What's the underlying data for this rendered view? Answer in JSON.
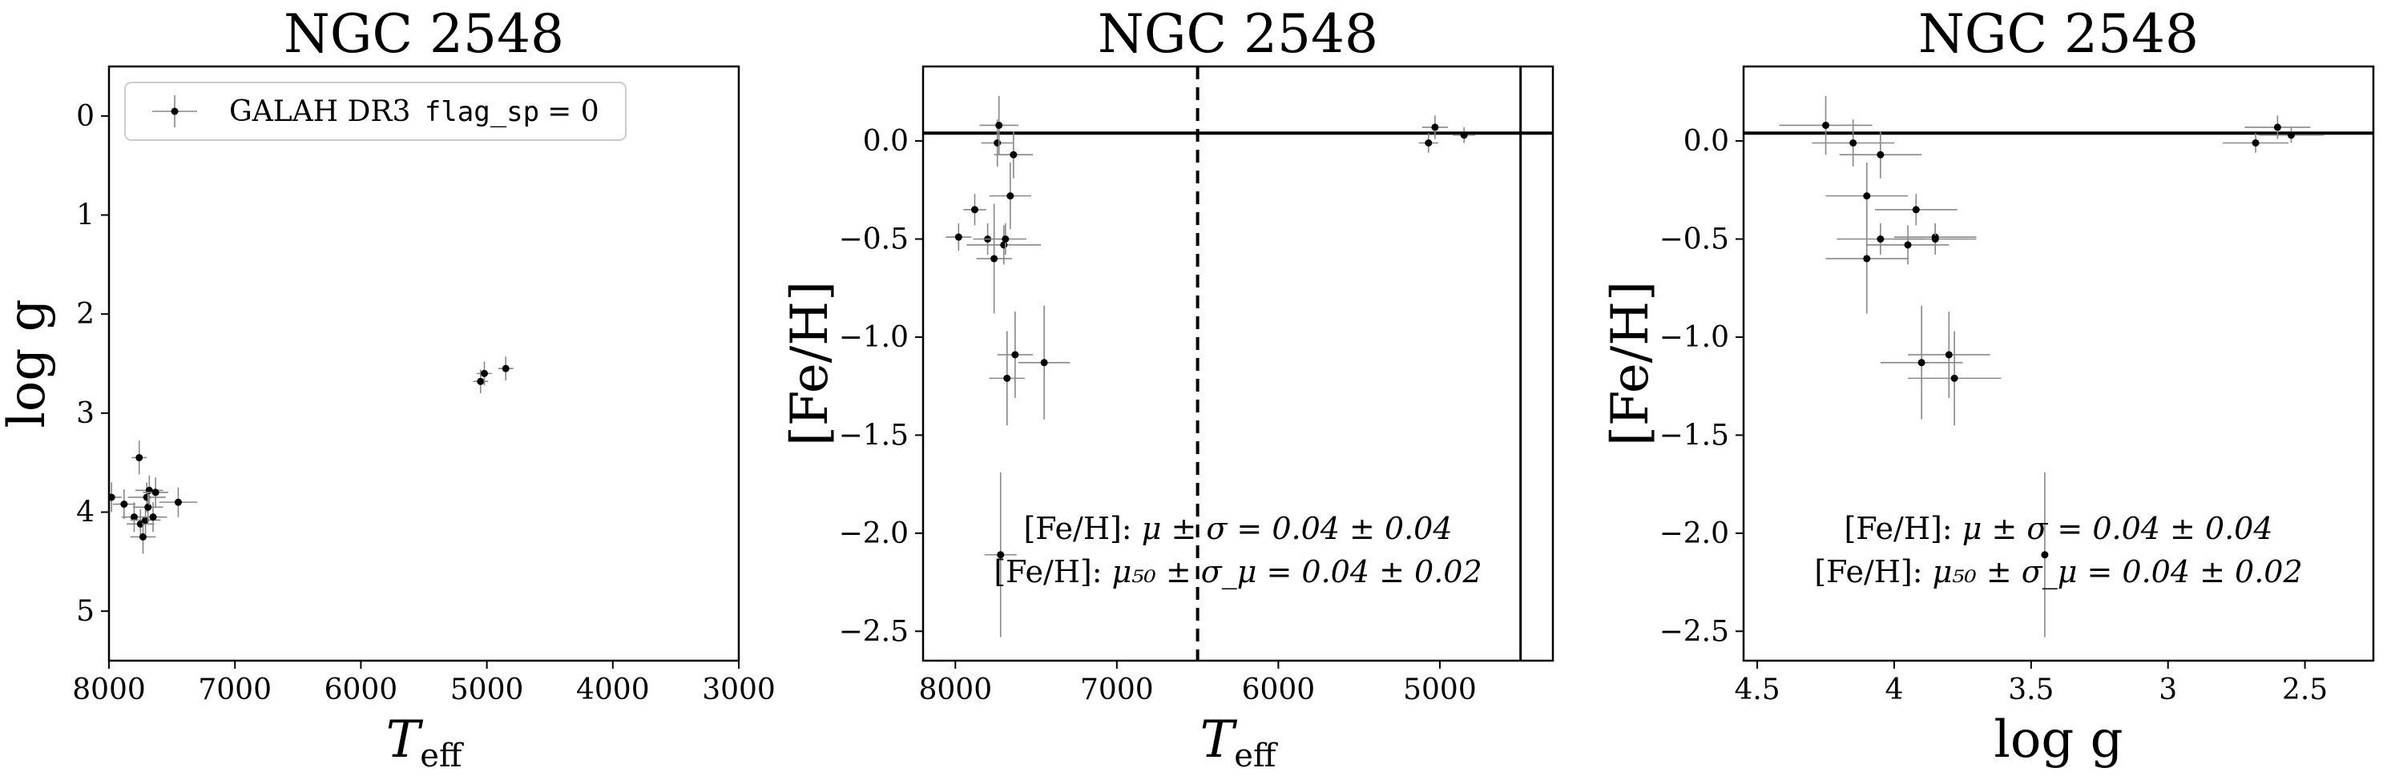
{
  "chart_data": [
    {
      "type": "scatter",
      "title": "NGC 2548",
      "xlabel_main": "T",
      "xlabel_sub": "eff",
      "ylabel": "log g",
      "xlim": [
        8000,
        3000
      ],
      "ylim": [
        5.5,
        -0.5
      ],
      "xticks": [
        8000,
        7000,
        6000,
        5000,
        4000,
        3000
      ],
      "yticks": [
        0,
        1,
        2,
        3,
        4,
        5
      ],
      "legend": {
        "location": "upper-left",
        "label": "GALAH DR3",
        "flag_name": "flag_sp",
        "flag_value": "= 0"
      },
      "series": [
        {
          "name": "GALAH DR3 flag_sp = 0",
          "points": [
            {
              "x": 7980,
              "y": 3.85,
              "xerr": 80,
              "yerr": 0.15
            },
            {
              "x": 7880,
              "y": 3.92,
              "xerr": 90,
              "yerr": 0.15
            },
            {
              "x": 7800,
              "y": 4.05,
              "xerr": 100,
              "yerr": 0.15
            },
            {
              "x": 7760,
              "y": 3.45,
              "xerr": 60,
              "yerr": 0.17
            },
            {
              "x": 7750,
              "y": 4.12,
              "xerr": 110,
              "yerr": 0.15
            },
            {
              "x": 7730,
              "y": 4.25,
              "xerr": 100,
              "yerr": 0.17
            },
            {
              "x": 7710,
              "y": 4.08,
              "xerr": 120,
              "yerr": 0.15
            },
            {
              "x": 7700,
              "y": 3.85,
              "xerr": 150,
              "yerr": 0.15
            },
            {
              "x": 7690,
              "y": 3.95,
              "xerr": 120,
              "yerr": 0.15
            },
            {
              "x": 7680,
              "y": 3.78,
              "xerr": 110,
              "yerr": 0.15
            },
            {
              "x": 7650,
              "y": 4.05,
              "xerr": 110,
              "yerr": 0.15
            },
            {
              "x": 7630,
              "y": 3.8,
              "xerr": 100,
              "yerr": 0.15
            },
            {
              "x": 7450,
              "y": 3.9,
              "xerr": 150,
              "yerr": 0.15
            },
            {
              "x": 5050,
              "y": 2.68,
              "xerr": 60,
              "yerr": 0.12
            },
            {
              "x": 5020,
              "y": 2.6,
              "xerr": 60,
              "yerr": 0.12
            },
            {
              "x": 4850,
              "y": 2.55,
              "xerr": 60,
              "yerr": 0.12
            }
          ]
        }
      ]
    },
    {
      "type": "scatter",
      "title": "NGC 2548",
      "xlabel_main": "T",
      "xlabel_sub": "eff",
      "ylabel": "[Fe/H]",
      "xlim": [
        8200,
        4300
      ],
      "ylim": [
        -2.65,
        0.38
      ],
      "xticks": [
        8000,
        7000,
        6000,
        5000
      ],
      "yticks": [
        0.0,
        -0.5,
        -1.0,
        -1.5,
        -2.0,
        -2.5
      ],
      "hline": 0.04,
      "vlines_dashed": [
        6500
      ],
      "vlines_solid": [
        4500
      ],
      "annotations": [
        {
          "label": "[Fe/H]",
          "expr": "μ ± σ = 0.04 ± 0.04"
        },
        {
          "label": "[Fe/H]",
          "expr": "μ₅₀ ± σ_μ = 0.04 ± 0.02"
        }
      ],
      "series": [
        {
          "name": "",
          "points": [
            {
              "x": 7980,
              "y": -0.49,
              "xerr": 80,
              "yerr": 0.07
            },
            {
              "x": 7880,
              "y": -0.35,
              "xerr": 70,
              "yerr": 0.08
            },
            {
              "x": 7800,
              "y": -0.5,
              "xerr": 90,
              "yerr": 0.08
            },
            {
              "x": 7760,
              "y": -0.6,
              "xerr": 110,
              "yerr": 0.28
            },
            {
              "x": 7740,
              "y": -0.01,
              "xerr": 100,
              "yerr": 0.12
            },
            {
              "x": 7730,
              "y": 0.08,
              "xerr": 120,
              "yerr": 0.15
            },
            {
              "x": 7720,
              "y": -2.11,
              "xerr": 100,
              "yerr": 0.42
            },
            {
              "x": 7700,
              "y": -0.53,
              "xerr": 230,
              "yerr": 0.1
            },
            {
              "x": 7690,
              "y": -0.5,
              "xerr": 130,
              "yerr": 0.08
            },
            {
              "x": 7680,
              "y": -1.21,
              "xerr": 110,
              "yerr": 0.24
            },
            {
              "x": 7660,
              "y": -0.28,
              "xerr": 130,
              "yerr": 0.17
            },
            {
              "x": 7640,
              "y": -0.07,
              "xerr": 120,
              "yerr": 0.12
            },
            {
              "x": 7630,
              "y": -1.09,
              "xerr": 110,
              "yerr": 0.22
            },
            {
              "x": 7450,
              "y": -1.13,
              "xerr": 160,
              "yerr": 0.29
            },
            {
              "x": 5070,
              "y": -0.01,
              "xerr": 60,
              "yerr": 0.05
            },
            {
              "x": 5030,
              "y": 0.07,
              "xerr": 80,
              "yerr": 0.06
            },
            {
              "x": 4850,
              "y": 0.03,
              "xerr": 70,
              "yerr": 0.04
            }
          ]
        }
      ]
    },
    {
      "type": "scatter",
      "title": "NGC 2548",
      "xlabel": "log g",
      "ylabel": "[Fe/H]",
      "xlim": [
        4.55,
        2.25
      ],
      "ylim": [
        -2.65,
        0.38
      ],
      "xticks": [
        4.5,
        4.0,
        3.5,
        3.0,
        2.5
      ],
      "yticks": [
        0.0,
        -0.5,
        -1.0,
        -1.5,
        -2.0,
        -2.5
      ],
      "hline": 0.04,
      "annotations": [
        {
          "label": "[Fe/H]",
          "expr": "μ ± σ = 0.04 ± 0.04"
        },
        {
          "label": "[Fe/H]",
          "expr": "μ₅₀ ± σ_μ = 0.04 ± 0.02"
        }
      ],
      "series": [
        {
          "name": "",
          "points": [
            {
              "x": 4.25,
              "y": 0.08,
              "xerr": 0.17,
              "yerr": 0.15
            },
            {
              "x": 4.15,
              "y": -0.01,
              "xerr": 0.15,
              "yerr": 0.12
            },
            {
              "x": 4.05,
              "y": -0.07,
              "xerr": 0.15,
              "yerr": 0.12
            },
            {
              "x": 4.1,
              "y": -0.28,
              "xerr": 0.15,
              "yerr": 0.17
            },
            {
              "x": 4.05,
              "y": -0.5,
              "xerr": 0.16,
              "yerr": 0.08
            },
            {
              "x": 4.1,
              "y": -0.6,
              "xerr": 0.15,
              "yerr": 0.28
            },
            {
              "x": 3.92,
              "y": -0.35,
              "xerr": 0.15,
              "yerr": 0.08
            },
            {
              "x": 3.85,
              "y": -0.49,
              "xerr": 0.15,
              "yerr": 0.07
            },
            {
              "x": 3.85,
              "y": -0.5,
              "xerr": 0.15,
              "yerr": 0.08
            },
            {
              "x": 3.95,
              "y": -0.53,
              "xerr": 0.15,
              "yerr": 0.1
            },
            {
              "x": 3.9,
              "y": -1.13,
              "xerr": 0.15,
              "yerr": 0.29
            },
            {
              "x": 3.8,
              "y": -1.09,
              "xerr": 0.15,
              "yerr": 0.22
            },
            {
              "x": 3.78,
              "y": -1.21,
              "xerr": 0.17,
              "yerr": 0.24
            },
            {
              "x": 3.45,
              "y": -2.11,
              "xerr": 0.0,
              "yerr": 0.42
            },
            {
              "x": 2.68,
              "y": -0.01,
              "xerr": 0.12,
              "yerr": 0.05
            },
            {
              "x": 2.6,
              "y": 0.07,
              "xerr": 0.12,
              "yerr": 0.06
            },
            {
              "x": 2.55,
              "y": 0.03,
              "xerr": 0.12,
              "yerr": 0.04
            }
          ]
        }
      ]
    }
  ]
}
